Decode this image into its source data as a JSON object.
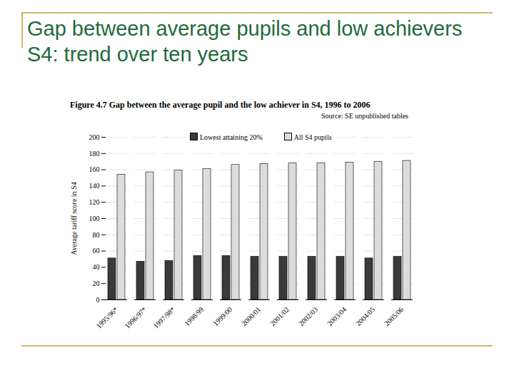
{
  "chart_data": {
    "type": "bar",
    "title": "Gap between average pupils and low achievers S4: trend over ten years",
    "subtitle": "Figure 4.7 Gap between the average pupil and the low achiever in S4, 1996 to 2006",
    "source": "Source: SE unpublished tables",
    "y_label": "Average tariff score in S4",
    "categories": [
      "1995/96*",
      "1996/97*",
      "1997/98*",
      "1998/99",
      "1999/00",
      "2000/01",
      "2001/02",
      "2002/03",
      "2003/04",
      "2004/05",
      "2005/06"
    ],
    "series": [
      {
        "name": "Lowest attaining 20%",
        "color": "#3a3a3a",
        "values": [
          51,
          47,
          48,
          54,
          54,
          53,
          53,
          53,
          53,
          51,
          53
        ]
      },
      {
        "name": "All S4 pupils",
        "color": "#dcdcdc",
        "values": [
          154,
          157,
          159,
          161,
          166,
          167,
          168,
          168,
          169,
          170,
          171
        ]
      }
    ],
    "ylim": [
      0,
      200
    ],
    "yticks": [
      0,
      20,
      40,
      60,
      80,
      100,
      120,
      140,
      160,
      180,
      200
    ],
    "grid": true,
    "legend": "top"
  }
}
